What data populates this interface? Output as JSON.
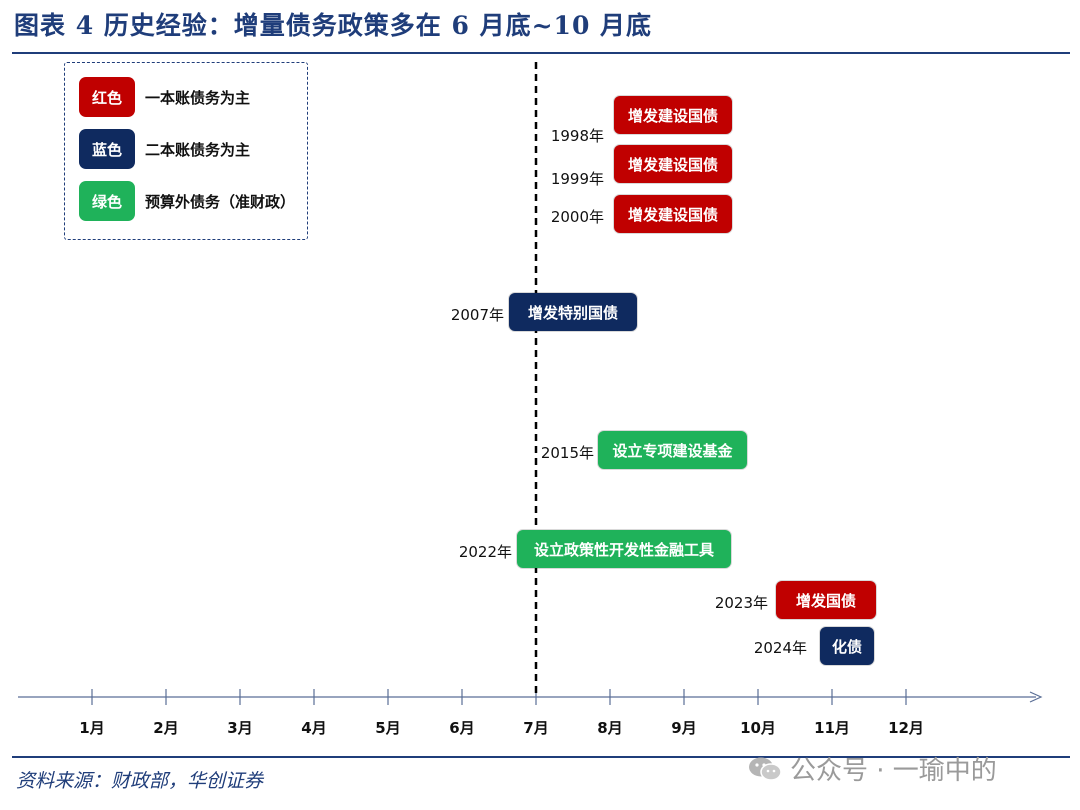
{
  "title": "图表 4   历史经验：增量债务政策多在 6 月底~10 月底",
  "source": "资料来源：财政部，华创证券",
  "watermark": "公众号 · 一瑜中的",
  "legend": [
    {
      "swatch": "红色",
      "text": "一本账债务为主",
      "color": "#c00000"
    },
    {
      "swatch": "蓝色",
      "text": "二本账债务为主",
      "color": "#0f2a5f"
    },
    {
      "swatch": "绿色",
      "text": "预算外债务（准财政）",
      "color": "#1fb25a"
    }
  ],
  "chart_data": {
    "type": "timeline",
    "x_categories": [
      "1月",
      "2月",
      "3月",
      "4月",
      "5月",
      "6月",
      "7月",
      "8月",
      "9月",
      "10月",
      "11月",
      "12月"
    ],
    "marker": {
      "at": "7月"
    },
    "events": [
      {
        "year": "1998年",
        "label": "增发建设国债",
        "category": "红色"
      },
      {
        "year": "1999年",
        "label": "增发建设国债",
        "category": "红色"
      },
      {
        "year": "2000年",
        "label": "增发建设国债",
        "category": "红色"
      },
      {
        "year": "2007年",
        "label": "增发特别国债",
        "category": "蓝色"
      },
      {
        "year": "2015年",
        "label": "设立专项建设基金",
        "category": "绿色"
      },
      {
        "year": "2022年",
        "label": "设立政策性开发性金融工具",
        "category": "绿色"
      },
      {
        "year": "2023年",
        "label": "增发国债",
        "category": "红色"
      },
      {
        "year": "2024年",
        "label": "化债",
        "category": "蓝色"
      }
    ]
  }
}
